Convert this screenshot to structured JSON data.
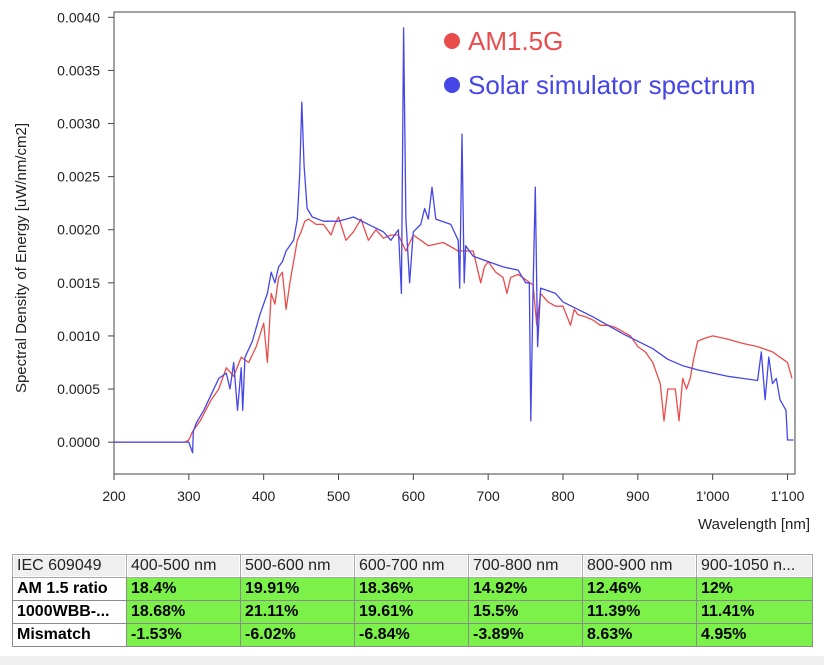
{
  "chart_data": {
    "type": "line",
    "xlabel": "Wavelength [nm]",
    "ylabel": "Spectral Density of Energy [uW/nm/cm2]",
    "xlim": [
      200,
      1110
    ],
    "ylim": [
      -0.0003,
      0.00405
    ],
    "x_ticks": [
      "200",
      "300",
      "400",
      "500",
      "600",
      "700",
      "800",
      "900",
      "1'000",
      "1'100"
    ],
    "y_ticks": [
      "0.0000",
      "0.0005",
      "0.0010",
      "0.0015",
      "0.0020",
      "0.0025",
      "0.0030",
      "0.0035",
      "0.0040"
    ],
    "grid": false,
    "legend_position": "top-right",
    "series": [
      {
        "name": "AM1.5G",
        "color": "#ea4c4c",
        "points": [
          [
            200,
            0
          ],
          [
            295,
            0
          ],
          [
            300,
            2e-05
          ],
          [
            305,
            0.0001
          ],
          [
            315,
            0.0002
          ],
          [
            330,
            0.0004
          ],
          [
            340,
            0.0005
          ],
          [
            350,
            0.0007
          ],
          [
            360,
            0.00062
          ],
          [
            370,
            0.0008
          ],
          [
            380,
            0.00075
          ],
          [
            390,
            0.0009
          ],
          [
            400,
            0.00112
          ],
          [
            405,
            0.00075
          ],
          [
            410,
            0.0014
          ],
          [
            415,
            0.0013
          ],
          [
            420,
            0.00155
          ],
          [
            425,
            0.0016
          ],
          [
            430,
            0.00125
          ],
          [
            435,
            0.0015
          ],
          [
            440,
            0.0017
          ],
          [
            445,
            0.0019
          ],
          [
            450,
            0.00198
          ],
          [
            455,
            0.00208
          ],
          [
            460,
            0.0021
          ],
          [
            470,
            0.00205
          ],
          [
            480,
            0.00205
          ],
          [
            490,
            0.00195
          ],
          [
            495,
            0.00205
          ],
          [
            500,
            0.00212
          ],
          [
            510,
            0.0019
          ],
          [
            520,
            0.00198
          ],
          [
            530,
            0.0021
          ],
          [
            540,
            0.0019
          ],
          [
            550,
            0.002
          ],
          [
            560,
            0.00192
          ],
          [
            570,
            0.00195
          ],
          [
            580,
            0.00195
          ],
          [
            590,
            0.0018
          ],
          [
            600,
            0.00195
          ],
          [
            620,
            0.00185
          ],
          [
            640,
            0.00188
          ],
          [
            660,
            0.0018
          ],
          [
            680,
            0.0018
          ],
          [
            690,
            0.0015
          ],
          [
            695,
            0.00165
          ],
          [
            700,
            0.0017
          ],
          [
            710,
            0.0016
          ],
          [
            720,
            0.00155
          ],
          [
            725,
            0.0014
          ],
          [
            730,
            0.00155
          ],
          [
            740,
            0.00158
          ],
          [
            760,
            0.00148
          ],
          [
            765,
            0.0011
          ],
          [
            770,
            0.0014
          ],
          [
            780,
            0.00132
          ],
          [
            790,
            0.00128
          ],
          [
            800,
            0.00128
          ],
          [
            810,
            0.0011
          ],
          [
            815,
            0.00125
          ],
          [
            820,
            0.0012
          ],
          [
            830,
            0.00118
          ],
          [
            840,
            0.00115
          ],
          [
            850,
            0.0011
          ],
          [
            860,
            0.0011
          ],
          [
            870,
            0.00108
          ],
          [
            880,
            0.00104
          ],
          [
            890,
            0.001
          ],
          [
            900,
            0.0009
          ],
          [
            910,
            0.00085
          ],
          [
            920,
            0.00075
          ],
          [
            930,
            0.00055
          ],
          [
            935,
            0.0002
          ],
          [
            940,
            0.0005
          ],
          [
            950,
            0.0005
          ],
          [
            955,
            0.0002
          ],
          [
            960,
            0.0006
          ],
          [
            965,
            0.0005
          ],
          [
            970,
            0.0006
          ],
          [
            975,
            0.0008
          ],
          [
            980,
            0.00095
          ],
          [
            990,
            0.00098
          ],
          [
            1000,
            0.001
          ],
          [
            1020,
            0.00097
          ],
          [
            1040,
            0.00093
          ],
          [
            1060,
            0.0009
          ],
          [
            1080,
            0.00085
          ],
          [
            1090,
            0.0008
          ],
          [
            1100,
            0.00075
          ],
          [
            1106,
            0.0006
          ]
        ]
      },
      {
        "name": "Solar simulator spectrum",
        "color": "#4646e6",
        "points": [
          [
            200,
            0
          ],
          [
            300,
            0
          ],
          [
            305,
            -0.0001
          ],
          [
            306,
            0.0001
          ],
          [
            310,
            0.00018
          ],
          [
            320,
            0.0003
          ],
          [
            330,
            0.00045
          ],
          [
            340,
            0.0006
          ],
          [
            350,
            0.00065
          ],
          [
            355,
            0.0005
          ],
          [
            360,
            0.00075
          ],
          [
            365,
            0.0003
          ],
          [
            370,
            0.0007
          ],
          [
            372,
            0.0003
          ],
          [
            375,
            0.0008
          ],
          [
            385,
            0.00095
          ],
          [
            395,
            0.0012
          ],
          [
            405,
            0.0014
          ],
          [
            410,
            0.0016
          ],
          [
            415,
            0.0015
          ],
          [
            420,
            0.00165
          ],
          [
            425,
            0.0017
          ],
          [
            430,
            0.0018
          ],
          [
            440,
            0.0019
          ],
          [
            445,
            0.0021
          ],
          [
            448,
            0.0025
          ],
          [
            451,
            0.0032
          ],
          [
            454,
            0.0026
          ],
          [
            458,
            0.0022
          ],
          [
            465,
            0.00212
          ],
          [
            480,
            0.00208
          ],
          [
            500,
            0.00208
          ],
          [
            520,
            0.00212
          ],
          [
            540,
            0.00205
          ],
          [
            560,
            0.00198
          ],
          [
            570,
            0.0019
          ],
          [
            580,
            0.002
          ],
          [
            584,
            0.0014
          ],
          [
            587,
            0.0039
          ],
          [
            590,
            0.0021
          ],
          [
            595,
            0.0015
          ],
          [
            600,
            0.00198
          ],
          [
            610,
            0.00205
          ],
          [
            615,
            0.0022
          ],
          [
            620,
            0.0021
          ],
          [
            625,
            0.0024
          ],
          [
            630,
            0.0021
          ],
          [
            650,
            0.00205
          ],
          [
            660,
            0.0019
          ],
          [
            662,
            0.00145
          ],
          [
            665,
            0.0029
          ],
          [
            668,
            0.0015
          ],
          [
            670,
            0.00185
          ],
          [
            680,
            0.00175
          ],
          [
            700,
            0.0017
          ],
          [
            720,
            0.00165
          ],
          [
            740,
            0.00162
          ],
          [
            750,
            0.0015
          ],
          [
            755,
            0.0015
          ],
          [
            757,
            0.0002
          ],
          [
            760,
            0.00145
          ],
          [
            763,
            0.0024
          ],
          [
            766,
            0.0009
          ],
          [
            770,
            0.00145
          ],
          [
            790,
            0.0014
          ],
          [
            800,
            0.00132
          ],
          [
            820,
            0.00125
          ],
          [
            840,
            0.00118
          ],
          [
            860,
            0.0011
          ],
          [
            880,
            0.00102
          ],
          [
            900,
            0.00095
          ],
          [
            920,
            0.00088
          ],
          [
            940,
            0.00078
          ],
          [
            960,
            0.00072
          ],
          [
            980,
            0.00068
          ],
          [
            1000,
            0.00065
          ],
          [
            1020,
            0.00062
          ],
          [
            1040,
            0.0006
          ],
          [
            1060,
            0.00058
          ],
          [
            1065,
            0.00085
          ],
          [
            1070,
            0.0004
          ],
          [
            1075,
            0.0008
          ],
          [
            1080,
            0.00055
          ],
          [
            1085,
            0.0006
          ],
          [
            1090,
            0.0004
          ],
          [
            1098,
            0.0003
          ],
          [
            1100,
            2e-05
          ],
          [
            1108,
            2e-05
          ]
        ]
      }
    ]
  },
  "table": {
    "header": [
      "IEC 609049",
      "400-500 nm",
      "500-600 nm",
      "600-700 nm",
      "700-800 nm",
      "800-900 nm",
      "900-1050 n..."
    ],
    "rows": [
      {
        "label": "AM 1.5 ratio",
        "values": [
          "18.4%",
          "19.91%",
          "18.36%",
          "14.92%",
          "12.46%",
          "12%"
        ]
      },
      {
        "label": "1000WBB-...",
        "values": [
          "18.68%",
          "21.11%",
          "19.61%",
          "15.5%",
          "11.39%",
          "11.41%"
        ]
      },
      {
        "label": "Mismatch",
        "values": [
          "-1.53%",
          "-6.02%",
          "-6.84%",
          "-3.89%",
          "8.63%",
          "4.95%"
        ]
      }
    ]
  }
}
